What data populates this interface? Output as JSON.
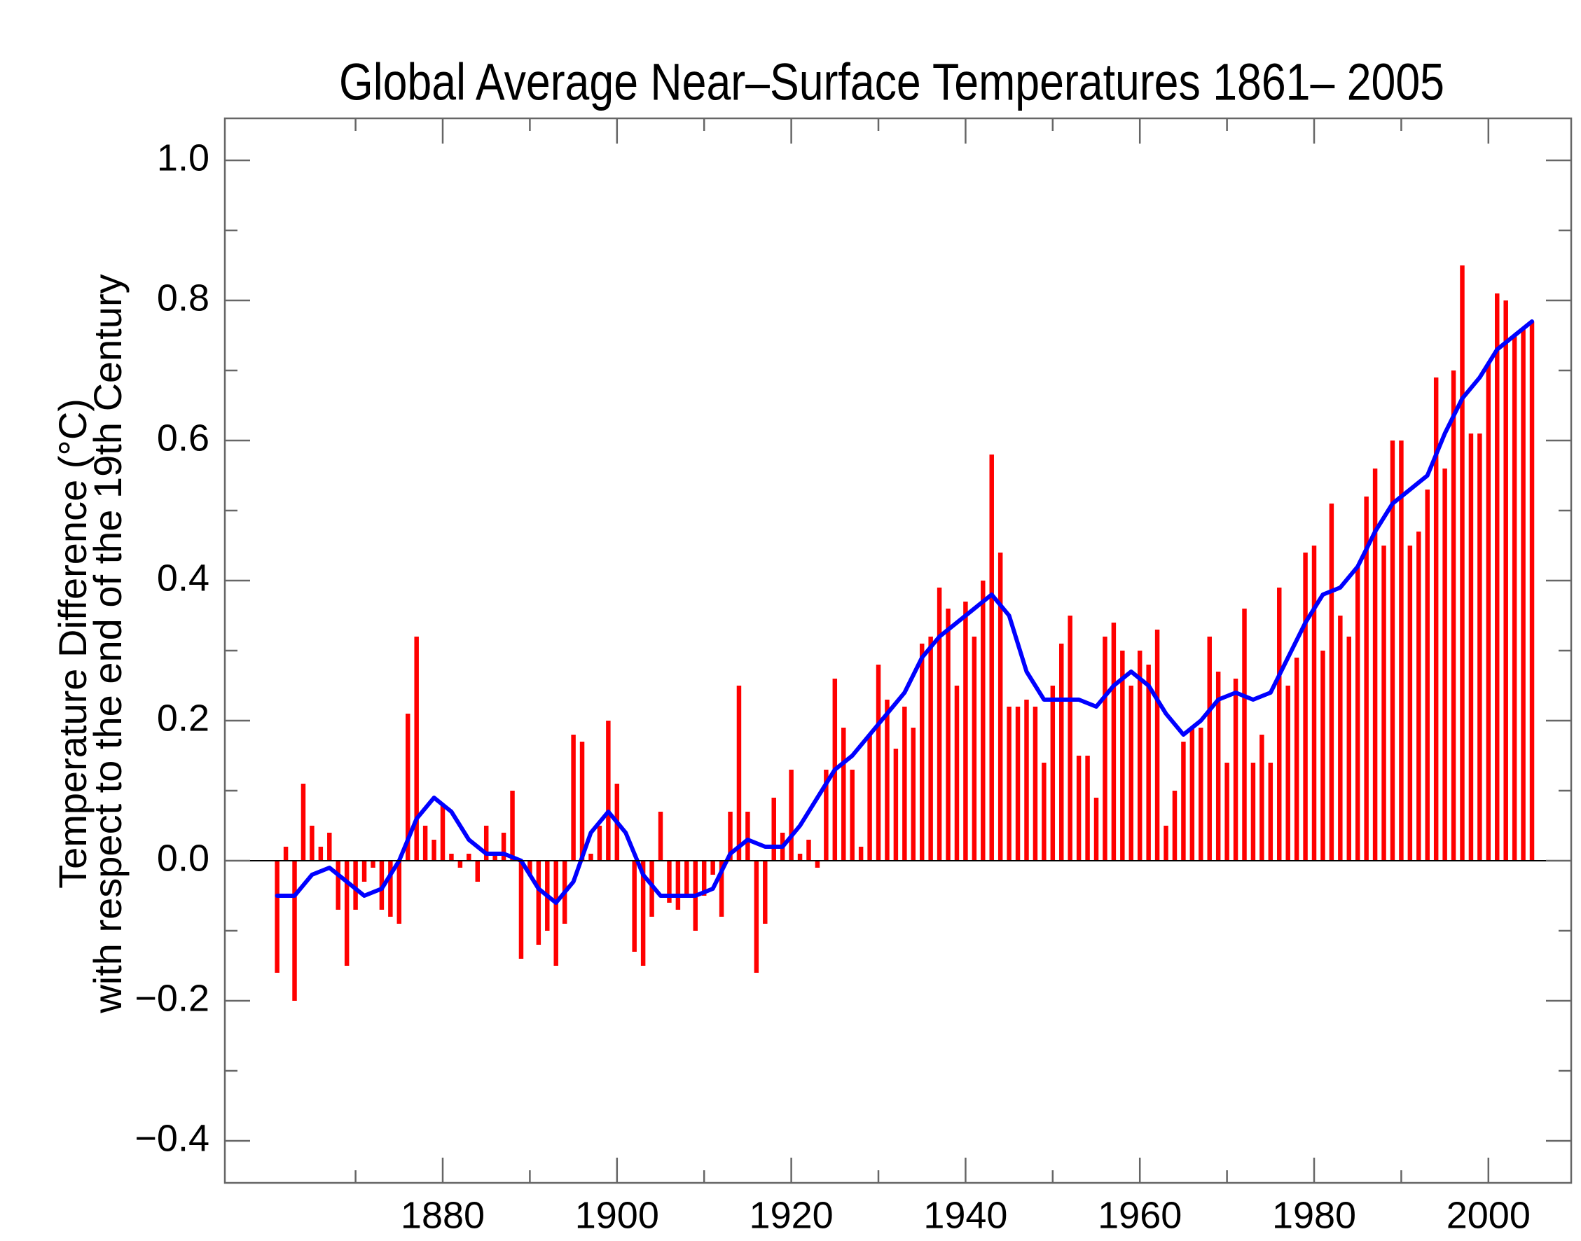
{
  "chart_data": {
    "type": "bar",
    "title": "Global Average Near–Surface Temperatures 1861– 2005",
    "ylabel": [
      "Temperature Difference (°C)",
      "with respect to the end of the 19th Century"
    ],
    "xlim": [
      1855,
      2009.5
    ],
    "ylim": [
      -0.46,
      1.06
    ],
    "xticks": [
      1880,
      1900,
      1920,
      1940,
      1960,
      1980,
      2000
    ],
    "xminorticks": [
      1870,
      1890,
      1910,
      1930,
      1950,
      1970,
      1990,
      2010
    ],
    "yticks": [
      {
        "value": 1,
        "label": "1.0"
      },
      0.8,
      0.6,
      0.4,
      0.2,
      {
        "value": 0,
        "label": "0.0"
      },
      {
        "value": -0.2,
        "label": "−0.2"
      },
      {
        "value": -0.4,
        "label": "−0.4"
      }
    ],
    "yminorticks": [
      0.9,
      0.7,
      0.5,
      0.3,
      0.1,
      -0.1,
      -0.3
    ],
    "series": [
      {
        "type": "bar",
        "color": "#ff0000",
        "x": [
          1861,
          1862,
          1863,
          1864,
          1865,
          1866,
          1867,
          1868,
          1869,
          1870,
          1871,
          1872,
          1873,
          1874,
          1875,
          1876,
          1877,
          1878,
          1879,
          1880,
          1881,
          1882,
          1883,
          1884,
          1885,
          1886,
          1887,
          1888,
          1889,
          1890,
          1891,
          1892,
          1893,
          1894,
          1895,
          1896,
          1897,
          1898,
          1899,
          1900,
          1901,
          1902,
          1903,
          1904,
          1905,
          1906,
          1907,
          1908,
          1909,
          1910,
          1911,
          1912,
          1913,
          1914,
          1915,
          1916,
          1917,
          1918,
          1919,
          1920,
          1921,
          1922,
          1923,
          1924,
          1925,
          1926,
          1927,
          1928,
          1929,
          1930,
          1931,
          1932,
          1933,
          1934,
          1935,
          1936,
          1937,
          1938,
          1939,
          1940,
          1941,
          1942,
          1943,
          1944,
          1945,
          1946,
          1947,
          1948,
          1949,
          1950,
          1951,
          1952,
          1953,
          1954,
          1955,
          1956,
          1957,
          1958,
          1959,
          1960,
          1961,
          1962,
          1963,
          1964,
          1965,
          1966,
          1967,
          1968,
          1969,
          1970,
          1971,
          1972,
          1973,
          1974,
          1975,
          1976,
          1977,
          1978,
          1979,
          1980,
          1981,
          1982,
          1983,
          1984,
          1985,
          1986,
          1987,
          1988,
          1989,
          1990,
          1991,
          1992,
          1993,
          1994,
          1995,
          1996,
          1997,
          1998,
          1999,
          2000,
          2001,
          2002,
          2003,
          2004,
          2005
        ],
        "values": [
          -0.16,
          0.02,
          -0.2,
          0.11,
          0.05,
          0.02,
          0.04,
          -0.07,
          -0.15,
          -0.07,
          -0.03,
          -0.01,
          -0.07,
          -0.08,
          -0.09,
          0.21,
          0.32,
          0.05,
          0.03,
          0.08,
          0.01,
          -0.01,
          0.01,
          -0.03,
          0.05,
          0.01,
          0.04,
          0.1,
          -0.14,
          -0.02,
          -0.12,
          -0.1,
          -0.15,
          -0.09,
          0.18,
          0.17,
          0.01,
          0.05,
          0.2,
          0.11,
          0.0,
          -0.13,
          -0.15,
          -0.08,
          0.07,
          -0.06,
          -0.07,
          -0.05,
          -0.1,
          -0.05,
          -0.02,
          -0.08,
          0.07,
          0.25,
          0.07,
          -0.16,
          -0.09,
          0.09,
          0.04,
          0.13,
          0.01,
          0.03,
          -0.01,
          0.13,
          0.26,
          0.19,
          0.13,
          0.02,
          0.18,
          0.28,
          0.23,
          0.16,
          0.22,
          0.19,
          0.31,
          0.32,
          0.39,
          0.36,
          0.25,
          0.37,
          0.32,
          0.4,
          0.58,
          0.44,
          0.22,
          0.22,
          0.23,
          0.22,
          0.14,
          0.25,
          0.31,
          0.35,
          0.15,
          0.15,
          0.09,
          0.32,
          0.34,
          0.3,
          0.25,
          0.3,
          0.28,
          0.33,
          0.05,
          0.1,
          0.17,
          0.19,
          0.19,
          0.32,
          0.27,
          0.14,
          0.26,
          0.36,
          0.14,
          0.18,
          0.14,
          0.39,
          0.25,
          0.29,
          0.44,
          0.45,
          0.3,
          0.51,
          0.35,
          0.32,
          0.42,
          0.52,
          0.56,
          0.45,
          0.6,
          0.6,
          0.45,
          0.47,
          0.53,
          0.69,
          0.56,
          0.7,
          0.85,
          0.61,
          0.61,
          0.71,
          0.81,
          0.8,
          0.75,
          0.76,
          0.77
        ]
      },
      {
        "type": "line",
        "color": "#0000ff",
        "x": [
          1861,
          1863,
          1865,
          1867,
          1869,
          1871,
          1873,
          1875,
          1877,
          1879,
          1881,
          1883,
          1885,
          1887,
          1889,
          1891,
          1893,
          1895,
          1897,
          1899,
          1901,
          1903,
          1905,
          1907,
          1909,
          1911,
          1913,
          1915,
          1917,
          1919,
          1921,
          1923,
          1925,
          1927,
          1929,
          1931,
          1933,
          1935,
          1937,
          1939,
          1941,
          1943,
          1945,
          1947,
          1949,
          1951,
          1953,
          1955,
          1957,
          1959,
          1961,
          1963,
          1965,
          1967,
          1969,
          1971,
          1973,
          1975,
          1977,
          1979,
          1981,
          1983,
          1985,
          1987,
          1989,
          1991,
          1993,
          1995,
          1997,
          1999,
          2001,
          2003,
          2005
        ],
        "values": [
          -0.05,
          -0.05,
          -0.02,
          -0.01,
          -0.03,
          -0.05,
          -0.04,
          0.0,
          0.06,
          0.09,
          0.07,
          0.03,
          0.01,
          0.01,
          0.0,
          -0.04,
          -0.06,
          -0.03,
          0.04,
          0.07,
          0.04,
          -0.02,
          -0.05,
          -0.05,
          -0.05,
          -0.04,
          0.01,
          0.03,
          0.02,
          0.02,
          0.05,
          0.09,
          0.13,
          0.15,
          0.18,
          0.21,
          0.24,
          0.29,
          0.32,
          0.34,
          0.36,
          0.38,
          0.35,
          0.27,
          0.23,
          0.23,
          0.23,
          0.22,
          0.25,
          0.27,
          0.25,
          0.21,
          0.18,
          0.2,
          0.23,
          0.24,
          0.23,
          0.24,
          0.29,
          0.34,
          0.38,
          0.39,
          0.42,
          0.47,
          0.51,
          0.53,
          0.55,
          0.61,
          0.66,
          0.69,
          0.73,
          0.75,
          0.77
        ]
      }
    ]
  }
}
